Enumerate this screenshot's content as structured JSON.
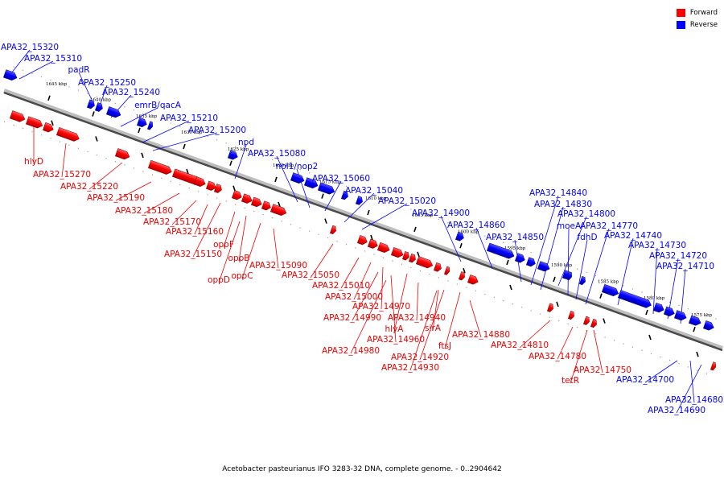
{
  "legend": {
    "forward_label": "Forward",
    "reverse_label": "Reverse",
    "forward_color": "#ff0000",
    "reverse_color": "#0000ff"
  },
  "caption": "Acetobacter pasteurianus IFO 3283-32 DNA, complete genome. - 0..2904642",
  "kbp_ticks": [
    "1645 kbp",
    "1640 kbp",
    "1635 kbp",
    "1630 kbp",
    "1625 kbp",
    "1620 kbp",
    "1615 kbp",
    "1610 kbp",
    "1605 kbp",
    "1600 kbp",
    "1595 kbp",
    "1590 kbp",
    "1585 kbp",
    "1580 kbp",
    "1575 kbp"
  ],
  "reverse_genes": [
    "APA32_15320",
    "APA32_15310",
    "padR",
    "APA32_15250",
    "APA32_15240",
    "emrB/qacA",
    "APA32_15210",
    "APA32_15200",
    "npd",
    "APA32_15080",
    "nol1/nop2",
    "APA32_15060",
    "APA32_15040",
    "APA32_15020",
    "APA32_14900",
    "APA32_14860",
    "APA32_14850",
    "APA32_14840",
    "APA32_14830",
    "moeA",
    "APA32_14800",
    "fdhD",
    "APA32_14770",
    "APA32_14740",
    "APA32_14730",
    "APA32_14720",
    "APA32_14710",
    "APA32_14700",
    "APA32_14680",
    "APA32_14690"
  ],
  "forward_genes": [
    "hlyD",
    "APA32_15270",
    "APA32_15220",
    "APA32_15190",
    "APA32_15180",
    "APA32_15170",
    "APA32_15160",
    "APA32_15150",
    "oppF",
    "oppB",
    "oppD",
    "oppC",
    "APA32_15090",
    "APA32_15050",
    "APA32_15010",
    "APA32_15000",
    "APA32_14970",
    "APA32_14990",
    "APA32_14960",
    "hlyA",
    "APA32_14980",
    "APA32_14940",
    "sirA",
    "APA32_14920",
    "APA32_14930",
    "ftsJ",
    "APA32_14880",
    "APA32_14810",
    "APA32_14780",
    "tetR",
    "APA32_14750"
  ]
}
